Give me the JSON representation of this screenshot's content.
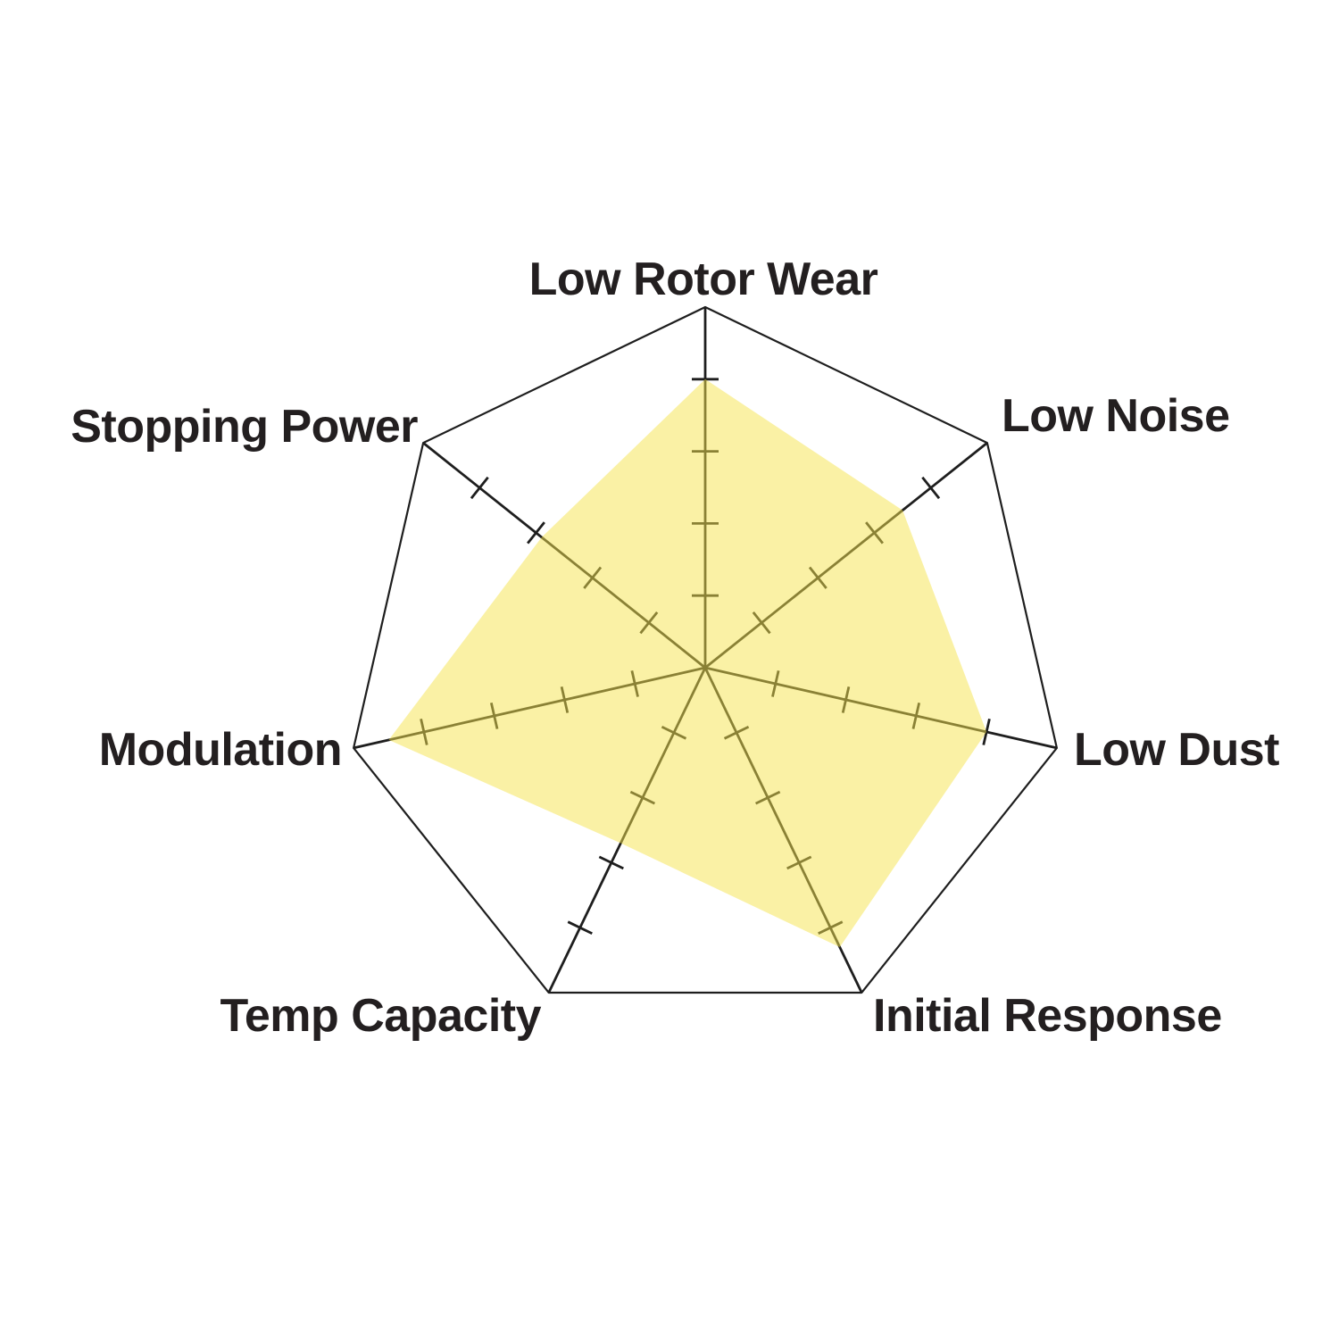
{
  "page": {
    "background_color": "#FFFFFF"
  },
  "chart_data": {
    "type": "radar",
    "categories": [
      "Low Rotor Wear",
      "Low Noise",
      "Low Dust",
      "Initial Response",
      "Temp Capacity",
      "Modulation",
      "Stopping Power"
    ],
    "values": [
      4.0,
      3.5,
      4.0,
      4.3,
      2.7,
      4.5,
      2.9
    ],
    "axis_min": 0,
    "axis_max": 5,
    "tick_interval": 1,
    "num_axes": 7,
    "grid": "spokes-with-ticks-and-outer-heptagon",
    "legend": "none",
    "fill_color": "#F5E34B",
    "fill_opacity": 0.5,
    "line_color": "#1E1E1E",
    "label_color": "#231F20"
  }
}
